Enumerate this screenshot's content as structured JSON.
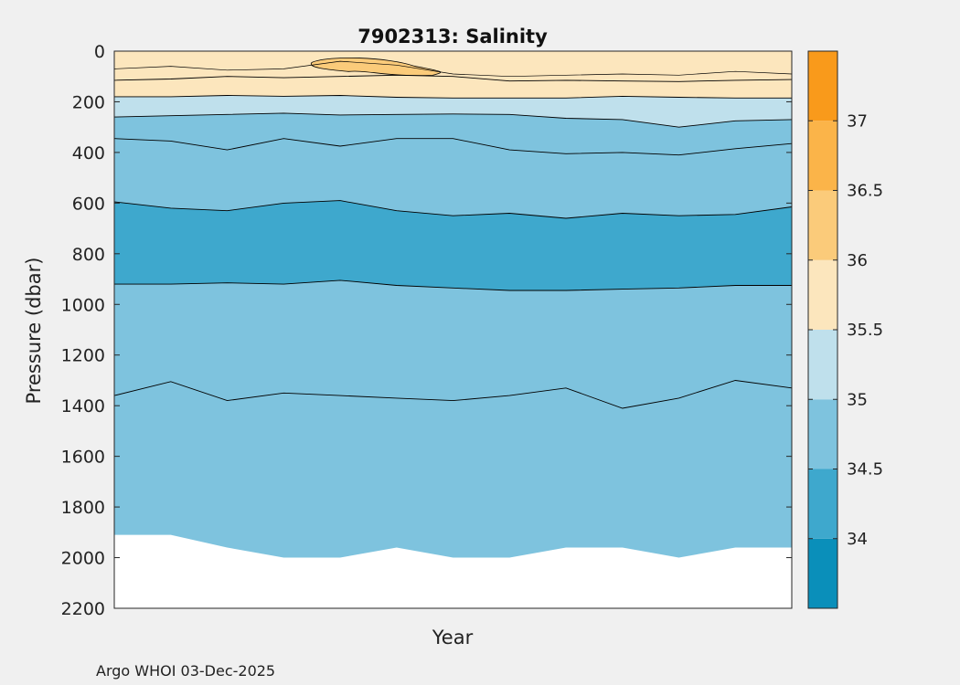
{
  "chart_data": {
    "type": "contourf",
    "title": "7902313:  Salinity",
    "xlabel": "Year",
    "ylabel": "Pressure (dbar)",
    "ylim": [
      0,
      2200
    ],
    "yticks": [
      0,
      200,
      400,
      600,
      800,
      1000,
      1200,
      1400,
      1600,
      1800,
      2000,
      2200
    ],
    "xticks": [],
    "colorbar": {
      "range": [
        33.5,
        37.5
      ],
      "tick_values": [
        34,
        34.5,
        35,
        35.5,
        36,
        36.5,
        37
      ],
      "tick_labels": [
        "34",
        "34.5",
        "35",
        "35.5",
        "36",
        "36.5",
        "37"
      ],
      "levels": [
        {
          "from": 33.5,
          "to": 34.0,
          "color": "#0a8fba"
        },
        {
          "from": 34.0,
          "to": 34.5,
          "color": "#3ea8cd"
        },
        {
          "from": 34.5,
          "to": 35.0,
          "color": "#7ec3de"
        },
        {
          "from": 35.0,
          "to": 35.5,
          "color": "#bfe0ec"
        },
        {
          "from": 35.5,
          "to": 36.0,
          "color": "#fce6bd"
        },
        {
          "from": 36.0,
          "to": 36.5,
          "color": "#fbcb7a"
        },
        {
          "from": 36.5,
          "to": 37.0,
          "color": "#fbb449"
        },
        {
          "from": 37.0,
          "to": 37.5,
          "color": "#f99a1b"
        }
      ]
    },
    "profile_index": [
      0,
      1,
      2,
      3,
      4,
      5,
      6,
      7,
      8,
      9,
      10,
      11,
      12
    ],
    "max_pressure": [
      1910,
      1910,
      1960,
      2000,
      2000,
      1960,
      2000,
      2000,
      1960,
      1960,
      2000,
      1960,
      1960
    ],
    "contours": [
      {
        "label": "35.5",
        "color": "#fce6bd",
        "pressure": [
          115,
          110,
          100,
          105,
          100,
          95,
          100,
          118,
          115,
          118,
          120,
          115,
          112
        ]
      },
      {
        "label": "35",
        "color": "#bfe0ec",
        "pressure": [
          180,
          180,
          175,
          178,
          175,
          182,
          185,
          185,
          185,
          178,
          182,
          185,
          185
        ]
      },
      {
        "label": "34.5",
        "color": "#7ec3de",
        "pressure": [
          260,
          255,
          250,
          245,
          252,
          250,
          248,
          250,
          265,
          270,
          300,
          275,
          270
        ]
      },
      {
        "label": "34.5",
        "color": "#7ec3de",
        "pressure": [
          345,
          355,
          390,
          345,
          375,
          345,
          345,
          390,
          405,
          400,
          410,
          385,
          365
        ]
      },
      {
        "label": "34",
        "color": "#3ea8cd",
        "pressure": [
          595,
          620,
          630,
          600,
          590,
          630,
          650,
          640,
          660,
          640,
          650,
          645,
          615
        ]
      },
      {
        "label": "34.5",
        "color": "#7ec3de",
        "pressure": [
          920,
          920,
          915,
          920,
          905,
          925,
          935,
          945,
          945,
          940,
          935,
          925,
          925
        ]
      },
      {
        "label": "34.5",
        "color": "#7ec3de",
        "pressure": [
          1360,
          1305,
          1380,
          1350,
          1360,
          1370,
          1380,
          1360,
          1330,
          1410,
          1370,
          1300,
          1330
        ]
      }
    ],
    "high_salinity_patch": {
      "label": "36",
      "color": "#fbcb7a",
      "pressure_top": 30,
      "pressure_bottom": 95
    }
  },
  "footer": "Argo WHOI 03-Dec-2025"
}
